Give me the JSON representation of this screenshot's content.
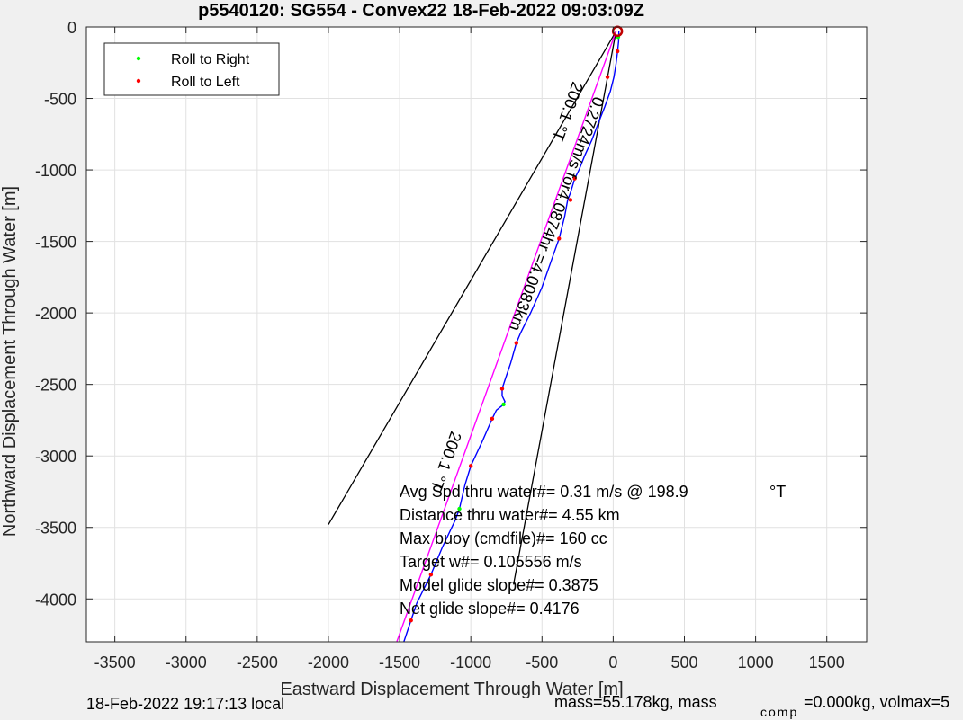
{
  "chart_data": {
    "type": "line",
    "title": "p5540120: SG554 - Convex22 18-Feb-2022 09:03:09Z",
    "xlabel": "Eastward Displacement Through Water [m]",
    "ylabel": "Northward Displacement Through Water [m]",
    "xlim": [
      -3700,
      1780
    ],
    "ylim": [
      -4300,
      0
    ],
    "xticks": [
      -3500,
      -3000,
      -2500,
      -2000,
      -1500,
      -1000,
      -500,
      0,
      500,
      1000,
      1500
    ],
    "yticks": [
      0,
      -500,
      -1000,
      -1500,
      -2000,
      -2500,
      -3000,
      -3500,
      -4000
    ],
    "grid": true,
    "legend_position": "top-left",
    "colors": {
      "track": "#0000ff",
      "avg_line": "#ff00ff",
      "guide_line": "#000000",
      "roll_right": "#00ff00",
      "roll_left": "#ff0000",
      "start_marker": "#c00000",
      "background": "#f0f0f0",
      "axes_bg": "#ffffff",
      "grid": "#e1e1e1"
    },
    "series": [
      {
        "kind": "track",
        "points": [
          [
            40,
            -30
          ],
          [
            38,
            -100
          ],
          [
            30,
            -180
          ],
          [
            20,
            -260
          ],
          [
            5,
            -350
          ],
          [
            -20,
            -450
          ],
          [
            -60,
            -560
          ],
          [
            -100,
            -660
          ],
          [
            -150,
            -790
          ],
          [
            -200,
            -900
          ],
          [
            -240,
            -1000
          ],
          [
            -270,
            -1060
          ],
          [
            -300,
            -1160
          ],
          [
            -320,
            -1210
          ],
          [
            -340,
            -1320
          ],
          [
            -380,
            -1480
          ],
          [
            -430,
            -1620
          ],
          [
            -500,
            -1820
          ],
          [
            -580,
            -2000
          ],
          [
            -650,
            -2140
          ],
          [
            -680,
            -2210
          ],
          [
            -720,
            -2350
          ],
          [
            -760,
            -2470
          ],
          [
            -780,
            -2530
          ],
          [
            -780,
            -2580
          ],
          [
            -760,
            -2620
          ],
          [
            -770,
            -2640
          ],
          [
            -820,
            -2680
          ],
          [
            -850,
            -2740
          ],
          [
            -920,
            -2900
          ],
          [
            -1000,
            -3070
          ],
          [
            -1040,
            -3200
          ],
          [
            -1080,
            -3370
          ],
          [
            -1110,
            -3450
          ],
          [
            -1200,
            -3640
          ],
          [
            -1280,
            -3830
          ],
          [
            -1380,
            -4030
          ],
          [
            -1420,
            -4150
          ],
          [
            -1470,
            -4300
          ]
        ]
      },
      {
        "name": "Roll to Right",
        "points": [
          [
            35,
            -70
          ],
          [
            -770,
            -2640
          ],
          [
            -1080,
            -3370
          ]
        ]
      },
      {
        "name": "Roll to Left",
        "points": [
          [
            30,
            -170
          ],
          [
            -40,
            -350
          ],
          [
            -270,
            -1060
          ],
          [
            -300,
            -1210
          ],
          [
            -380,
            -1480
          ],
          [
            -680,
            -2210
          ],
          [
            -780,
            -2530
          ],
          [
            -850,
            -2740
          ],
          [
            -1000,
            -3070
          ],
          [
            -1280,
            -3830
          ],
          [
            -1420,
            -4150
          ]
        ]
      },
      {
        "kind": "avg_line",
        "points": [
          [
            20,
            -30
          ],
          [
            -1520,
            -4300
          ]
        ]
      }
    ],
    "guide_lines": [
      [
        [
          20,
          -30
        ],
        [
          -2000,
          -3480
        ]
      ],
      [
        [
          20,
          -30
        ],
        [
          -700,
          -3900
        ]
      ]
    ],
    "legend": [
      "Roll to Right",
      "Roll to Left"
    ],
    "annotations": {
      "heading_top": "200.1 °T",
      "heading_bottom": "200.1 °T",
      "speed_label": "0.2724m/s for4.0874hr =4.0083km",
      "stats": [
        "Avg Spd thru water#=  0.31 m/s @ 198.9",
        "Distance thru water#=  4.55 km",
        "Max buoy (cmdfile)#= 160 cc",
        "Target w#= 0.105556 m/s",
        "Model glide slope#= 0.3875",
        "Net glide slope#= 0.4176"
      ],
      "deg_unit": "°T"
    },
    "footer": {
      "local_time": "18-Feb-2022 19:17:13 local",
      "mass": "mass=55.178kg, mass",
      "mass_sub": "comp",
      "mass_rest": "=0.000kg, volmax=5"
    }
  }
}
